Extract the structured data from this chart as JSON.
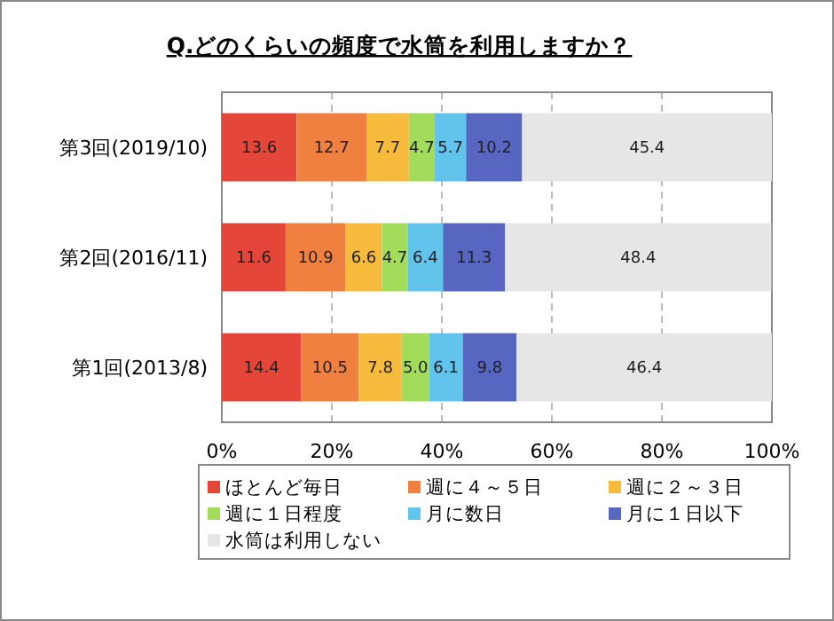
{
  "chart_data": {
    "type": "bar",
    "orientation": "horizontal",
    "stacked": true,
    "title": "Q.どのくらいの頻度で水筒を利用しますか？",
    "categories": [
      "第3回(2019/10)",
      "第2回(2016/11)",
      "第1回(2013/8)"
    ],
    "series": [
      {
        "name": "ほとんど毎日",
        "color": "#e5463a",
        "values": [
          13.6,
          11.6,
          14.4
        ],
        "value_labels": [
          "13.6",
          "11.6",
          "14.4"
        ]
      },
      {
        "name": "週に４～５日",
        "color": "#ef8040",
        "values": [
          12.7,
          10.9,
          10.5
        ],
        "value_labels": [
          "12.7",
          "10.9",
          "10.5"
        ]
      },
      {
        "name": "週に２～３日",
        "color": "#f6bb3c",
        "values": [
          7.7,
          6.6,
          7.8
        ],
        "value_labels": [
          "7.7",
          "6.6",
          "7.8"
        ]
      },
      {
        "name": "週に１日程度",
        "color": "#a3dc5a",
        "values": [
          4.7,
          4.7,
          5.0
        ],
        "value_labels": [
          "4.7",
          "4.7",
          "5.0"
        ]
      },
      {
        "name": "月に数日",
        "color": "#62c3ec",
        "values": [
          5.7,
          6.4,
          6.1
        ],
        "value_labels": [
          "5.7",
          "6.4",
          "6.1"
        ]
      },
      {
        "name": "月に１日以下",
        "color": "#5766c0",
        "values": [
          10.2,
          11.3,
          9.8
        ],
        "value_labels": [
          "10.2",
          "11.3",
          "9.8"
        ]
      },
      {
        "name": "水筒は利用しない",
        "color": "#e6e6e6",
        "values": [
          45.4,
          48.4,
          46.4
        ],
        "value_labels": [
          "45.4",
          "48.4",
          "46.4"
        ]
      }
    ],
    "xlim": [
      0,
      100
    ],
    "xticks": [
      {
        "value": 0,
        "label": "0%"
      },
      {
        "value": 20,
        "label": "20%"
      },
      {
        "value": 40,
        "label": "40%"
      },
      {
        "value": 60,
        "label": "60%"
      },
      {
        "value": 80,
        "label": "80%"
      },
      {
        "value": 100,
        "label": "100%"
      }
    ],
    "grid": "x",
    "legend": "bottom"
  }
}
